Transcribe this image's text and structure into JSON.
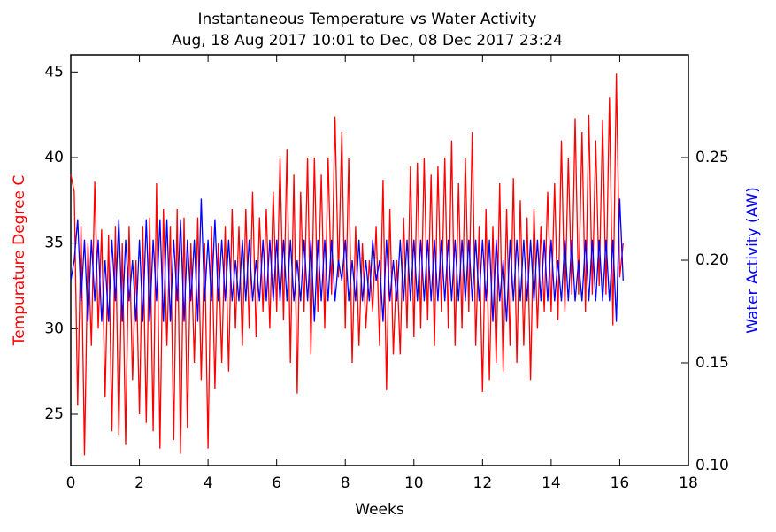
{
  "chart_data": {
    "type": "line",
    "title": "Instantaneous Temperature vs Water Activity",
    "subtitle": "Aug, 18 Aug 2017 10:01 to Dec, 08 Dec 2017 23:24",
    "x_label": "Weeks",
    "y_label": "Tempurature Degree C",
    "y2_label": "Water Activity (AW)",
    "xlim": [
      0,
      18
    ],
    "xticks": [
      0,
      2,
      4,
      6,
      8,
      10,
      12,
      14,
      16,
      18
    ],
    "ylim": [
      22,
      46
    ],
    "yticks": [
      25,
      30,
      35,
      40,
      45
    ],
    "y2lim": [
      0.1,
      0.3
    ],
    "y2ticks": [
      0.1,
      0.15,
      0.2,
      0.25
    ],
    "y_label_color": "#ff0000",
    "y2_label_color": "#0000ff",
    "x": [
      0,
      0.1,
      0.2,
      0.3,
      0.4,
      0.5,
      0.6,
      0.7,
      0.8,
      0.9,
      1,
      1.1,
      1.2,
      1.3,
      1.4,
      1.5,
      1.6,
      1.7,
      1.8,
      1.9,
      2,
      2.1,
      2.2,
      2.3,
      2.4,
      2.5,
      2.6,
      2.7,
      2.8,
      2.9,
      3,
      3.1,
      3.2,
      3.3,
      3.4,
      3.5,
      3.6,
      3.7,
      3.8,
      3.9,
      4,
      4.1,
      4.2,
      4.3,
      4.4,
      4.5,
      4.6,
      4.7,
      4.8,
      4.9,
      5,
      5.1,
      5.2,
      5.3,
      5.4,
      5.5,
      5.6,
      5.7,
      5.8,
      5.9,
      6,
      6.1,
      6.2,
      6.3,
      6.4,
      6.5,
      6.6,
      6.7,
      6.8,
      6.9,
      7,
      7.1,
      7.2,
      7.3,
      7.4,
      7.5,
      7.6,
      7.7,
      7.8,
      7.9,
      8,
      8.1,
      8.2,
      8.3,
      8.4,
      8.5,
      8.6,
      8.7,
      8.8,
      8.9,
      9,
      9.1,
      9.2,
      9.3,
      9.4,
      9.5,
      9.6,
      9.7,
      9.8,
      9.9,
      10,
      10.1,
      10.2,
      10.3,
      10.4,
      10.5,
      10.6,
      10.7,
      10.8,
      10.9,
      11,
      11.1,
      11.2,
      11.3,
      11.4,
      11.5,
      11.6,
      11.7,
      11.8,
      11.9,
      12,
      12.1,
      12.2,
      12.3,
      12.4,
      12.5,
      12.6,
      12.7,
      12.8,
      12.9,
      13,
      13.1,
      13.2,
      13.3,
      13.4,
      13.5,
      13.6,
      13.7,
      13.8,
      13.9,
      14,
      14.1,
      14.2,
      14.3,
      14.4,
      14.5,
      14.6,
      14.7,
      14.8,
      14.9,
      15,
      15.1,
      15.2,
      15.3,
      15.4,
      15.5,
      15.6,
      15.7,
      15.8,
      15.9,
      16,
      16.1
    ],
    "series": [
      {
        "name": "Temperature",
        "color": "#ff0000",
        "axis": "y",
        "values": [
          39,
          38,
          25.5,
          36,
          22.6,
          35,
          29,
          38.6,
          30,
          35.8,
          26,
          35.5,
          24,
          36,
          23.8,
          35,
          23.2,
          36,
          27,
          34,
          25,
          36,
          24.5,
          36.5,
          24,
          38.5,
          23,
          37,
          29,
          36,
          23.5,
          37,
          22.7,
          36.5,
          24.2,
          35,
          28,
          36.5,
          27,
          35,
          23,
          36,
          26.5,
          35,
          28,
          36,
          27.5,
          37,
          30,
          36,
          29,
          37,
          30,
          38,
          29.5,
          36.5,
          31,
          37,
          30,
          38,
          31,
          40,
          30.5,
          40.5,
          28,
          39,
          26.2,
          38,
          31,
          40,
          28.5,
          40,
          31,
          39,
          30,
          40,
          32,
          42.4,
          33,
          41.5,
          30,
          40,
          28,
          36,
          29,
          35,
          30,
          34,
          31,
          36,
          29,
          38.7,
          26.4,
          37,
          28.5,
          34,
          28.5,
          36.5,
          30,
          39.5,
          29.5,
          39.7,
          30,
          40,
          30.5,
          39,
          29,
          39.5,
          31,
          40,
          30,
          41,
          29,
          38.5,
          30,
          40,
          31,
          41.5,
          29,
          36,
          26.3,
          37,
          27,
          36,
          28,
          38.5,
          27.5,
          37,
          29,
          38.8,
          28,
          37.5,
          29,
          36.5,
          27,
          37,
          30,
          36,
          31,
          38,
          31,
          38.5,
          30.5,
          41,
          31,
          40,
          32,
          42.3,
          32,
          41.5,
          31,
          42.5,
          32,
          41,
          32.5,
          42.2,
          32,
          43.5,
          30.2,
          44.9,
          33,
          35
        ]
      },
      {
        "name": "Water Activity",
        "color": "#0000ff",
        "axis": "y2",
        "values": [
          0.19,
          0.2,
          0.22,
          0.18,
          0.21,
          0.17,
          0.21,
          0.18,
          0.21,
          0.17,
          0.2,
          0.17,
          0.21,
          0.18,
          0.22,
          0.17,
          0.21,
          0.18,
          0.2,
          0.17,
          0.21,
          0.17,
          0.22,
          0.17,
          0.21,
          0.18,
          0.22,
          0.17,
          0.22,
          0.17,
          0.21,
          0.18,
          0.22,
          0.17,
          0.21,
          0.18,
          0.21,
          0.17,
          0.23,
          0.18,
          0.21,
          0.18,
          0.22,
          0.18,
          0.21,
          0.18,
          0.21,
          0.18,
          0.2,
          0.18,
          0.21,
          0.18,
          0.21,
          0.18,
          0.2,
          0.18,
          0.21,
          0.18,
          0.21,
          0.18,
          0.21,
          0.18,
          0.21,
          0.18,
          0.21,
          0.18,
          0.2,
          0.18,
          0.21,
          0.18,
          0.21,
          0.17,
          0.21,
          0.18,
          0.21,
          0.18,
          0.21,
          0.18,
          0.2,
          0.19,
          0.21,
          0.18,
          0.2,
          0.18,
          0.21,
          0.18,
          0.2,
          0.18,
          0.21,
          0.19,
          0.2,
          0.17,
          0.21,
          0.18,
          0.2,
          0.18,
          0.21,
          0.18,
          0.21,
          0.18,
          0.21,
          0.18,
          0.21,
          0.18,
          0.21,
          0.18,
          0.21,
          0.18,
          0.21,
          0.18,
          0.21,
          0.18,
          0.21,
          0.18,
          0.21,
          0.18,
          0.21,
          0.18,
          0.21,
          0.18,
          0.21,
          0.18,
          0.21,
          0.17,
          0.21,
          0.18,
          0.2,
          0.17,
          0.21,
          0.18,
          0.21,
          0.18,
          0.21,
          0.18,
          0.21,
          0.18,
          0.21,
          0.18,
          0.21,
          0.18,
          0.21,
          0.18,
          0.2,
          0.18,
          0.21,
          0.18,
          0.21,
          0.18,
          0.2,
          0.18,
          0.21,
          0.18,
          0.21,
          0.18,
          0.21,
          0.18,
          0.21,
          0.18,
          0.21,
          0.17,
          0.23,
          0.19
        ]
      }
    ]
  }
}
